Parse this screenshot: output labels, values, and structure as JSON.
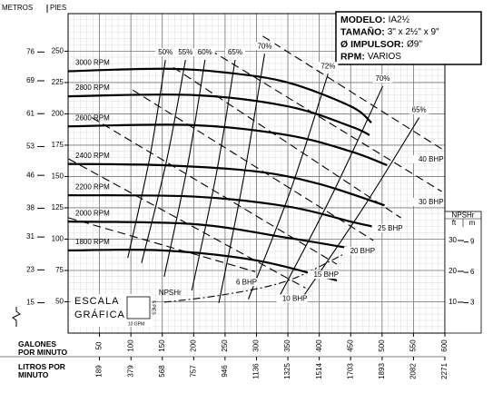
{
  "chart_data": {
    "type": "line",
    "y_label_left": "METROS",
    "y_label_right": "PIES",
    "xlabel": "GALONES POR MINUTO",
    "x2label": "LITROS POR MINUTO",
    "xlim": [
      0,
      600
    ],
    "xticks": [
      50,
      100,
      150,
      200,
      250,
      300,
      350,
      400,
      450,
      500,
      550,
      600
    ],
    "x2lim": [
      0,
      2271.2
    ],
    "x2ticks": [
      189,
      379,
      568,
      757,
      946,
      1136,
      1325,
      1514,
      1703,
      1893,
      2082,
      2271
    ],
    "ylim": [
      25,
      280
    ],
    "yticks": [
      50,
      75,
      100,
      125,
      150,
      175,
      200,
      225,
      250
    ],
    "y2lim": [
      7.62,
      85.34
    ],
    "y2ticks": [
      15,
      23,
      31,
      38,
      46,
      53,
      61,
      69,
      76
    ],
    "grid": true,
    "color": "#000000",
    "info": [
      {
        "label": "MODELO:",
        "value": "IA2½"
      },
      {
        "label": "TAMAÑO:",
        "value": "3\" x 2½\" x 9\""
      },
      {
        "label": "Ø IMPULSOR:",
        "value": "Ø9\""
      },
      {
        "label": "RPM:",
        "value": "VARIOS"
      }
    ],
    "series": [
      {
        "name": "3000 RPM",
        "x": [
          0,
          150,
          250,
          350,
          450,
          483
        ],
        "values": [
          234,
          236,
          233,
          225,
          206,
          193
        ]
      },
      {
        "name": "2800 RPM",
        "x": [
          0,
          200,
          350,
          450,
          480
        ],
        "values": [
          214,
          215,
          206,
          190,
          183
        ]
      },
      {
        "name": "2600 RPM",
        "x": [
          0,
          200,
          350,
          450,
          508
        ],
        "values": [
          190,
          191,
          183,
          170,
          159
        ]
      },
      {
        "name": "2400 RPM",
        "x": [
          0,
          150,
          300,
          400,
          504
        ],
        "values": [
          160,
          159,
          154,
          144,
          127
        ]
      },
      {
        "name": "2200 RPM",
        "x": [
          0,
          200,
          350,
          450,
          486
        ],
        "values": [
          135,
          134,
          126,
          114,
          110
        ]
      },
      {
        "name": "2000 RPM",
        "x": [
          0,
          200,
          350,
          457
        ],
        "values": [
          114,
          112,
          101,
          92
        ]
      },
      {
        "name": "1800 RPM",
        "x": [
          0,
          150,
          300,
          428
        ],
        "values": [
          91,
          91,
          83,
          67
        ]
      }
    ],
    "efficiency": [
      {
        "name": "50%",
        "x": [
          155,
          130,
          95
        ],
        "values": [
          243,
          165,
          85
        ]
      },
      {
        "name": "55%",
        "x": [
          187,
          157,
          117
        ],
        "values": [
          243,
          163,
          81
        ]
      },
      {
        "name": "60%",
        "x": [
          218,
          190,
          153
        ],
        "values": [
          243,
          158,
          70
        ]
      },
      {
        "name": "65%",
        "x": [
          266,
          236,
          197
        ],
        "values": [
          243,
          152,
          59
        ]
      },
      {
        "name": "70%",
        "x": [
          313,
          280,
          240
        ],
        "values": [
          248,
          150,
          49
        ]
      },
      {
        "name": "72%",
        "x": [
          414,
          355,
          287
        ],
        "values": [
          232,
          140,
          52
        ]
      },
      {
        "name": "70%",
        "x": [
          501,
          420,
          334
        ],
        "values": [
          222,
          135,
          52
        ]
      },
      {
        "name": "65%",
        "x": [
          559,
          470,
          370
        ],
        "values": [
          197,
          125,
          51
        ]
      }
    ],
    "power": [
      {
        "name": "40 BHP",
        "x": [
          310,
          595
        ],
        "values": [
          262,
          172
        ]
      },
      {
        "name": "30 BHP",
        "x": [
          226,
          595
        ],
        "values": [
          251,
          138
        ]
      },
      {
        "name": "25 BHP",
        "x": [
          168,
          530
        ],
        "values": [
          237,
          117
        ]
      },
      {
        "name": "20 BHP",
        "x": [
          103,
          486
        ],
        "values": [
          219,
          99
        ]
      },
      {
        "name": "15 BHP",
        "x": [
          38,
          428
        ],
        "values": [
          197,
          80
        ]
      },
      {
        "name": "10 BHP",
        "x": [
          1,
          378
        ],
        "values": [
          164,
          61
        ]
      },
      {
        "name": "6 BHP",
        "x": [
          1,
          298
        ],
        "values": [
          117,
          74
        ]
      }
    ],
    "npshr": {
      "name": "NPSHr",
      "title": "NPSHr",
      "ft_label": "ft",
      "m_label": "m",
      "ylim": [
        0,
        39
      ],
      "yticks": [
        10,
        20,
        30
      ],
      "y2lim": [
        0,
        11.89
      ],
      "y2ticks": [
        3,
        6,
        9
      ],
      "x": [
        153,
        250,
        350,
        443
      ],
      "values": [
        10,
        12.5,
        17,
        26
      ]
    },
    "scale_box": {
      "line1": "ESCALA",
      "line2": "GRÁFICA",
      "height_label": "5 PIES",
      "width_label": "10 GPM"
    }
  }
}
